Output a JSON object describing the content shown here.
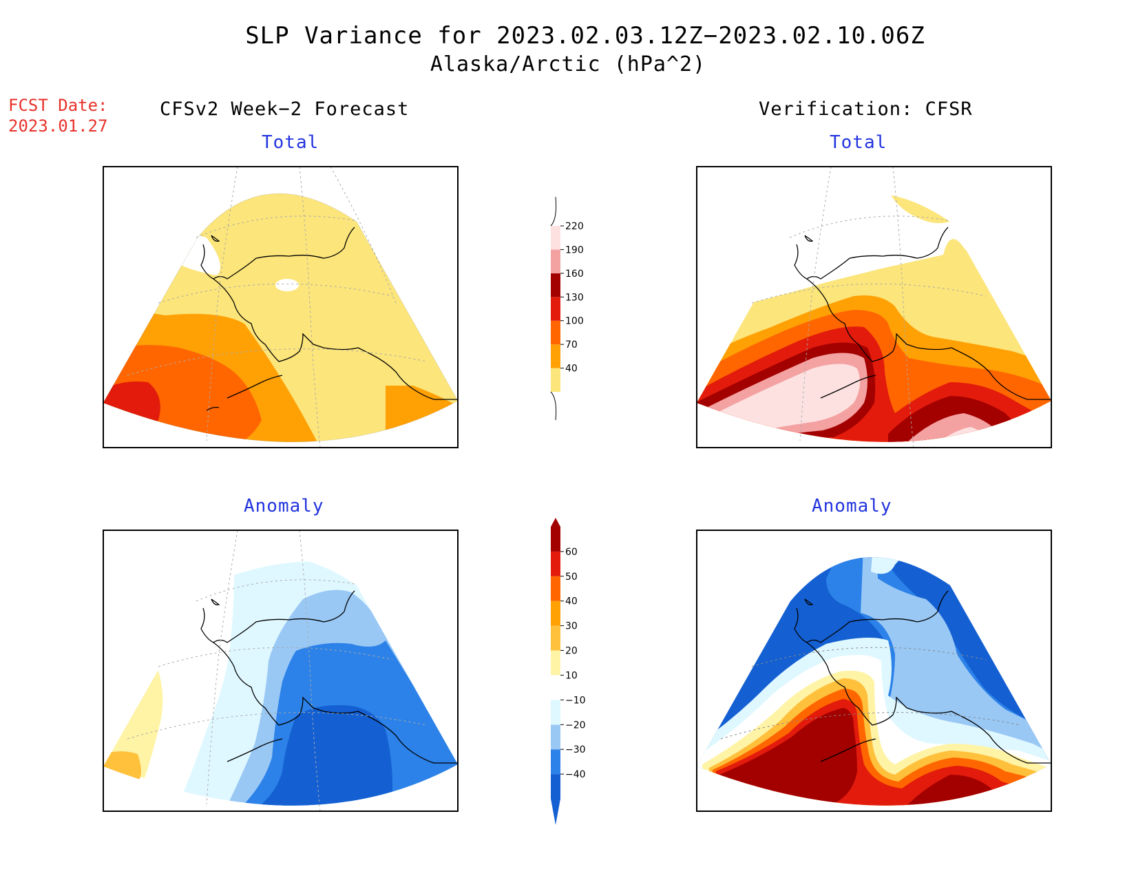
{
  "title": "SLP Variance for 2023.02.03.12Z−2023.02.10.06Z",
  "subtitle": "Alaska/Arctic (hPa^2)",
  "fcst_date_label": "FCST Date:",
  "fcst_date_value": "2023.01.27",
  "left_header": "CFSv2 Week−2 Forecast",
  "right_header": "Verification: CFSR",
  "panels": {
    "top_left_label": "Total",
    "top_right_label": "Total",
    "bottom_left_label": "Anomaly",
    "bottom_right_label": "Anomaly"
  },
  "chart_data": [
    {
      "type": "heatmap",
      "name": "total-colorbar",
      "levels": [
        "40",
        "70",
        "100",
        "130",
        "160",
        "190",
        "220"
      ],
      "colors": [
        "#fce57a",
        "#ffa005",
        "#ff6600",
        "#e21b0c",
        "#a30000",
        "#f4a1a1",
        "#fde1e1"
      ]
    },
    {
      "type": "heatmap",
      "name": "anomaly-colorbar",
      "levels": [
        "−40",
        "−30",
        "−20",
        "−10",
        "10",
        "20",
        "30",
        "40",
        "50",
        "60"
      ],
      "colors": [
        "#1460d2",
        "#2c82e8",
        "#99c8f5",
        "#dff8ff",
        "#ffffff",
        "#fff3a6",
        "#ffc03c",
        "#ffa005",
        "#ff6600",
        "#e21b0c",
        "#a30000"
      ]
    }
  ]
}
